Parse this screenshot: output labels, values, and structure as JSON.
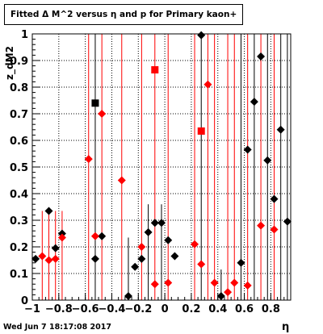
{
  "header": {
    "title": "Fitted Δ M^2 versus η and p for Primary kaon+"
  },
  "footer": {
    "timestamp": "Wed Jun  7 18:17:08 2017"
  },
  "chart_data": {
    "type": "scatter",
    "title": "Fitted Δ M^2 versus η and p for Primary kaon+",
    "xlabel": "η",
    "ylabel": "z_dM2",
    "xlim": [
      -1,
      0.95
    ],
    "ylim": [
      0,
      1
    ],
    "x_tick_labels": [
      "−1",
      "−0.8",
      "−0.6",
      "−0.4",
      "−0.2",
      "0",
      "0.2",
      "0.4",
      "0.6",
      "0.8"
    ],
    "x_ticks": [
      -1,
      -0.8,
      -0.6,
      -0.4,
      -0.2,
      0,
      0.2,
      0.4,
      0.6,
      0.8
    ],
    "y_tick_labels": [
      "0",
      "0.1",
      "0.2",
      "0.3",
      "0.4",
      "0.5",
      "0.6",
      "0.7",
      "0.8",
      "0.9",
      "1"
    ],
    "y_ticks": [
      0,
      0.1,
      0.2,
      0.3,
      0.4,
      0.5,
      0.6,
      0.7,
      0.8,
      0.9,
      1
    ],
    "grid": true,
    "colors": {
      "series_a": "#000000",
      "series_b": "#ff0000"
    },
    "series": [
      {
        "color": "#000000",
        "marker": "diamond",
        "points": [
          {
            "x": -0.975,
            "y": 0.155
          },
          {
            "x": -0.875,
            "y": 0.335
          },
          {
            "x": -0.825,
            "y": 0.195
          },
          {
            "x": -0.775,
            "y": 0.25
          },
          {
            "x": -0.525,
            "y": 0.155
          },
          {
            "x": -0.475,
            "y": 0.24
          },
          {
            "x": -0.275,
            "y": 0.015
          },
          {
            "x": -0.225,
            "y": 0.125
          },
          {
            "x": -0.175,
            "y": 0.155
          },
          {
            "x": -0.125,
            "y": 0.255
          },
          {
            "x": -0.075,
            "y": 0.29
          },
          {
            "x": -0.025,
            "y": 0.29
          },
          {
            "x": 0.025,
            "y": 0.225
          },
          {
            "x": 0.075,
            "y": 0.165
          },
          {
            "x": 0.275,
            "y": 0.995
          },
          {
            "x": 0.425,
            "y": 0.015
          },
          {
            "x": 0.575,
            "y": 0.14
          },
          {
            "x": 0.625,
            "y": 0.565
          },
          {
            "x": 0.675,
            "y": 0.745
          },
          {
            "x": 0.725,
            "y": 0.915
          },
          {
            "x": 0.775,
            "y": 0.525
          },
          {
            "x": 0.825,
            "y": 0.38
          },
          {
            "x": 0.875,
            "y": 0.64
          },
          {
            "x": 0.925,
            "y": 0.295
          }
        ],
        "square_points": [
          {
            "x": -0.525,
            "y": 0.74
          }
        ]
      },
      {
        "color": "#ff0000",
        "marker": "diamond",
        "points": [
          {
            "x": -0.925,
            "y": 0.165
          },
          {
            "x": -0.875,
            "y": 0.15
          },
          {
            "x": -0.825,
            "y": 0.155
          },
          {
            "x": -0.775,
            "y": 0.235
          },
          {
            "x": -0.575,
            "y": 0.53
          },
          {
            "x": -0.525,
            "y": 0.24
          },
          {
            "x": -0.475,
            "y": 0.7
          },
          {
            "x": -0.325,
            "y": 0.45
          },
          {
            "x": -0.175,
            "y": 0.2
          },
          {
            "x": -0.075,
            "y": 0.06
          },
          {
            "x": 0.025,
            "y": 0.065
          },
          {
            "x": 0.225,
            "y": 0.21
          },
          {
            "x": 0.275,
            "y": 0.135
          },
          {
            "x": 0.325,
            "y": 0.81
          },
          {
            "x": 0.375,
            "y": 0.065
          },
          {
            "x": 0.475,
            "y": 0.03
          },
          {
            "x": 0.525,
            "y": 0.065
          },
          {
            "x": 0.625,
            "y": 0.055
          },
          {
            "x": 0.725,
            "y": 0.28
          },
          {
            "x": 0.825,
            "y": 0.265
          }
        ],
        "square_points": [
          {
            "x": -0.075,
            "y": 0.865
          },
          {
            "x": 0.275,
            "y": 0.635
          }
        ]
      }
    ],
    "error_bars": [
      {
        "x": -0.975,
        "color": "#000000",
        "ylow": 0.155,
        "yhigh": 0.155
      },
      {
        "x": -0.925,
        "color": "#ff0000",
        "ylow": 0.0,
        "yhigh": 0.335
      },
      {
        "x": -0.875,
        "color": "#ff0000",
        "ylow": 0.0,
        "yhigh": 0.335
      },
      {
        "x": -0.825,
        "color": "#ff0000",
        "ylow": 0.0,
        "yhigh": 0.335
      },
      {
        "x": -0.775,
        "color": "#ff0000",
        "ylow": 0.0,
        "yhigh": 0.335
      },
      {
        "x": -0.575,
        "color": "#ff0000",
        "ylow": 0.0,
        "yhigh": 1.0
      },
      {
        "x": -0.525,
        "color": "#000000",
        "ylow": 0.0,
        "yhigh": 1.0
      },
      {
        "x": -0.475,
        "color": "#ff0000",
        "ylow": 0.0,
        "yhigh": 1.0
      },
      {
        "x": -0.325,
        "color": "#ff0000",
        "ylow": 0.0,
        "yhigh": 1.0
      },
      {
        "x": -0.275,
        "color": "#000000",
        "ylow": 0.0,
        "yhigh": 0.235
      },
      {
        "x": -0.175,
        "color": "#ff0000",
        "ylow": 0.0,
        "yhigh": 1.0
      },
      {
        "x": -0.125,
        "color": "#000000",
        "ylow": 0.0,
        "yhigh": 0.36
      },
      {
        "x": -0.075,
        "color": "#ff0000",
        "ylow": 0.0,
        "yhigh": 1.0
      },
      {
        "x": -0.025,
        "color": "#000000",
        "ylow": 0.0,
        "yhigh": 0.36
      },
      {
        "x": 0.025,
        "color": "#ff0000",
        "ylow": 0.0,
        "yhigh": 1.0
      },
      {
        "x": 0.225,
        "color": "#ff0000",
        "ylow": 0.0,
        "yhigh": 1.0
      },
      {
        "x": 0.275,
        "color": "#000000",
        "ylow": 0.0,
        "yhigh": 1.0
      },
      {
        "x": 0.325,
        "color": "#ff0000",
        "ylow": 0.0,
        "yhigh": 1.0
      },
      {
        "x": 0.375,
        "color": "#ff0000",
        "ylow": 0.0,
        "yhigh": 1.0
      },
      {
        "x": 0.425,
        "color": "#000000",
        "ylow": 0.0,
        "yhigh": 0.115
      },
      {
        "x": 0.475,
        "color": "#ff0000",
        "ylow": 0.0,
        "yhigh": 1.0
      },
      {
        "x": 0.525,
        "color": "#ff0000",
        "ylow": 0.0,
        "yhigh": 1.0
      },
      {
        "x": 0.575,
        "color": "#000000",
        "ylow": 0.0,
        "yhigh": 1.0
      },
      {
        "x": 0.625,
        "color": "#ff0000",
        "ylow": 0.0,
        "yhigh": 1.0
      },
      {
        "x": 0.675,
        "color": "#000000",
        "ylow": 0.0,
        "yhigh": 1.0
      },
      {
        "x": 0.725,
        "color": "#ff0000",
        "ylow": 0.0,
        "yhigh": 1.0
      },
      {
        "x": 0.775,
        "color": "#000000",
        "ylow": 0.0,
        "yhigh": 1.0
      },
      {
        "x": 0.825,
        "color": "#ff0000",
        "ylow": 0.0,
        "yhigh": 1.0
      },
      {
        "x": 0.875,
        "color": "#000000",
        "ylow": 0.0,
        "yhigh": 1.0
      },
      {
        "x": 0.925,
        "color": "#000000",
        "ylow": 0.0,
        "yhigh": 1.0
      }
    ]
  }
}
